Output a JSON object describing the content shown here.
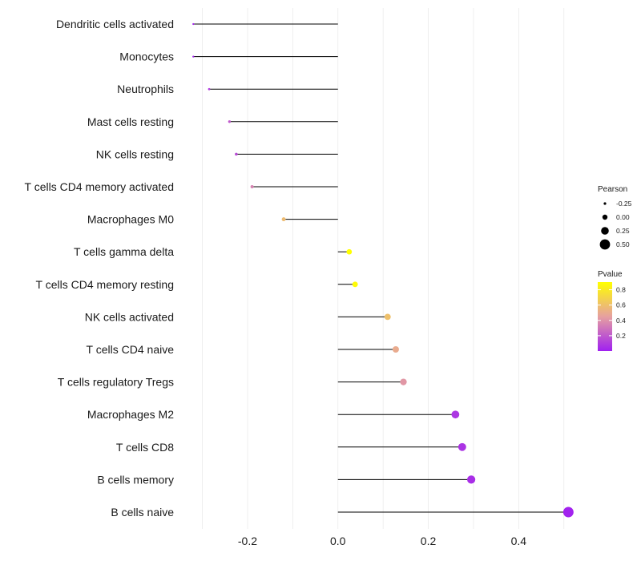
{
  "chart_data": {
    "type": "lollipop",
    "title": "",
    "xlabel": "",
    "ylabel": "",
    "xlim": [
      -0.34,
      0.52
    ],
    "xticks": [
      -0.2,
      0.0,
      0.2,
      0.4
    ],
    "xtick_labels": [
      "-0.2",
      "0.0",
      "0.2",
      "0.4"
    ],
    "grid": true,
    "colors": {
      "low": "#a020f0",
      "mid": "#e6a0a0",
      "high": "#ffff00",
      "stem": "#000000",
      "grid": "#ebebeb"
    },
    "categories": [
      "Dendritic cells activated",
      "Monocytes",
      "Neutrophils",
      "Mast cells resting",
      "NK cells resting",
      "T cells CD4 memory activated",
      "Macrophages M0",
      "T cells gamma delta",
      "T cells CD4 memory resting",
      "NK cells activated",
      "T cells CD4 naive",
      "T cells regulatory  Tregs ",
      "Macrophages M2",
      "T cells CD8",
      "B cells memory",
      "B cells naive"
    ],
    "pearson": [
      -0.32,
      -0.32,
      -0.285,
      -0.24,
      -0.225,
      -0.19,
      -0.12,
      0.025,
      0.038,
      0.11,
      0.128,
      0.145,
      0.26,
      0.275,
      0.295,
      0.51
    ],
    "pvalue": [
      0.02,
      0.02,
      0.1,
      0.2,
      0.15,
      0.35,
      0.58,
      0.9,
      0.88,
      0.6,
      0.5,
      0.42,
      0.08,
      0.07,
      0.05,
      0.01
    ],
    "legend": {
      "placement": "right",
      "size_title": "Pearson",
      "size_values": [
        -0.25,
        0.0,
        0.25,
        0.5
      ],
      "size_labels": [
        "-0.25",
        "0.00",
        "0.25",
        "0.50"
      ],
      "color_title": "Pvalue",
      "color_range": [
        0.0,
        0.9
      ],
      "color_ticks": [
        0.2,
        0.4,
        0.6,
        0.8
      ],
      "color_labels": [
        "0.2",
        "0.4",
        "0.6",
        "0.8"
      ]
    }
  }
}
